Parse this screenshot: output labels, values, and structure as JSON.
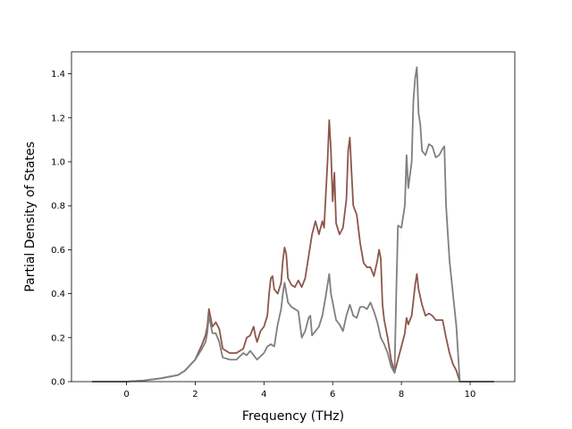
{
  "chart_data": {
    "type": "line",
    "title": "",
    "xlabel": "Frequency (THz)",
    "ylabel": "Partial Density of States",
    "xlim": [
      -1.6,
      11.3
    ],
    "ylim": [
      0.0,
      1.5
    ],
    "xticks": [
      0,
      2,
      4,
      6,
      8,
      10
    ],
    "yticks": [
      0.0,
      0.2,
      0.4,
      0.6,
      0.8,
      1.0,
      1.2,
      1.4
    ],
    "grid": false,
    "legend": "none",
    "series": [
      {
        "color": "#8c564b",
        "points": [
          [
            -1.0,
            0.0
          ],
          [
            0.0,
            0.0
          ],
          [
            0.5,
            0.005
          ],
          [
            1.0,
            0.015
          ],
          [
            1.5,
            0.03
          ],
          [
            1.7,
            0.05
          ],
          [
            2.0,
            0.1
          ],
          [
            2.2,
            0.17
          ],
          [
            2.3,
            0.21
          ],
          [
            2.35,
            0.25
          ],
          [
            2.4,
            0.33
          ],
          [
            2.45,
            0.29
          ],
          [
            2.5,
            0.25
          ],
          [
            2.6,
            0.27
          ],
          [
            2.7,
            0.24
          ],
          [
            2.8,
            0.15
          ],
          [
            3.0,
            0.13
          ],
          [
            3.2,
            0.13
          ],
          [
            3.4,
            0.15
          ],
          [
            3.5,
            0.2
          ],
          [
            3.6,
            0.21
          ],
          [
            3.7,
            0.25
          ],
          [
            3.75,
            0.21
          ],
          [
            3.8,
            0.18
          ],
          [
            3.9,
            0.23
          ],
          [
            4.0,
            0.25
          ],
          [
            4.1,
            0.3
          ],
          [
            4.15,
            0.4
          ],
          [
            4.2,
            0.47
          ],
          [
            4.25,
            0.48
          ],
          [
            4.3,
            0.42
          ],
          [
            4.4,
            0.4
          ],
          [
            4.5,
            0.45
          ],
          [
            4.55,
            0.55
          ],
          [
            4.6,
            0.61
          ],
          [
            4.65,
            0.58
          ],
          [
            4.7,
            0.47
          ],
          [
            4.8,
            0.44
          ],
          [
            4.9,
            0.43
          ],
          [
            5.0,
            0.46
          ],
          [
            5.1,
            0.43
          ],
          [
            5.2,
            0.47
          ],
          [
            5.3,
            0.57
          ],
          [
            5.4,
            0.67
          ],
          [
            5.5,
            0.73
          ],
          [
            5.6,
            0.67
          ],
          [
            5.7,
            0.73
          ],
          [
            5.75,
            0.7
          ],
          [
            5.8,
            0.85
          ],
          [
            5.85,
            1.0
          ],
          [
            5.9,
            1.19
          ],
          [
            5.95,
            1.05
          ],
          [
            6.0,
            0.82
          ],
          [
            6.05,
            0.95
          ],
          [
            6.1,
            0.72
          ],
          [
            6.2,
            0.67
          ],
          [
            6.3,
            0.7
          ],
          [
            6.4,
            0.83
          ],
          [
            6.45,
            1.05
          ],
          [
            6.5,
            1.11
          ],
          [
            6.55,
            0.95
          ],
          [
            6.6,
            0.8
          ],
          [
            6.7,
            0.76
          ],
          [
            6.8,
            0.63
          ],
          [
            6.9,
            0.54
          ],
          [
            7.0,
            0.52
          ],
          [
            7.1,
            0.52
          ],
          [
            7.2,
            0.48
          ],
          [
            7.3,
            0.55
          ],
          [
            7.35,
            0.6
          ],
          [
            7.4,
            0.56
          ],
          [
            7.45,
            0.35
          ],
          [
            7.5,
            0.28
          ],
          [
            7.6,
            0.2
          ],
          [
            7.7,
            0.1
          ],
          [
            7.8,
            0.04
          ],
          [
            7.9,
            0.1
          ],
          [
            8.0,
            0.16
          ],
          [
            8.1,
            0.22
          ],
          [
            8.15,
            0.29
          ],
          [
            8.2,
            0.26
          ],
          [
            8.3,
            0.3
          ],
          [
            8.4,
            0.44
          ],
          [
            8.45,
            0.49
          ],
          [
            8.5,
            0.42
          ],
          [
            8.6,
            0.35
          ],
          [
            8.7,
            0.3
          ],
          [
            8.8,
            0.31
          ],
          [
            8.9,
            0.3
          ],
          [
            9.0,
            0.28
          ],
          [
            9.1,
            0.28
          ],
          [
            9.2,
            0.28
          ],
          [
            9.3,
            0.2
          ],
          [
            9.4,
            0.13
          ],
          [
            9.5,
            0.08
          ],
          [
            9.6,
            0.05
          ],
          [
            9.7,
            0.0
          ],
          [
            10.7,
            0.0
          ]
        ]
      },
      {
        "color": "#7f7f7f",
        "points": [
          [
            -1.0,
            0.0
          ],
          [
            0.0,
            0.0
          ],
          [
            0.5,
            0.005
          ],
          [
            1.0,
            0.015
          ],
          [
            1.5,
            0.03
          ],
          [
            1.7,
            0.05
          ],
          [
            2.0,
            0.1
          ],
          [
            2.2,
            0.15
          ],
          [
            2.3,
            0.18
          ],
          [
            2.35,
            0.22
          ],
          [
            2.4,
            0.3
          ],
          [
            2.45,
            0.26
          ],
          [
            2.5,
            0.22
          ],
          [
            2.6,
            0.22
          ],
          [
            2.7,
            0.18
          ],
          [
            2.8,
            0.11
          ],
          [
            3.0,
            0.1
          ],
          [
            3.2,
            0.1
          ],
          [
            3.4,
            0.13
          ],
          [
            3.5,
            0.12
          ],
          [
            3.6,
            0.14
          ],
          [
            3.7,
            0.12
          ],
          [
            3.8,
            0.1
          ],
          [
            4.0,
            0.13
          ],
          [
            4.1,
            0.16
          ],
          [
            4.2,
            0.17
          ],
          [
            4.3,
            0.16
          ],
          [
            4.4,
            0.26
          ],
          [
            4.5,
            0.33
          ],
          [
            4.55,
            0.4
          ],
          [
            4.6,
            0.45
          ],
          [
            4.7,
            0.36
          ],
          [
            4.8,
            0.34
          ],
          [
            4.9,
            0.33
          ],
          [
            5.0,
            0.32
          ],
          [
            5.1,
            0.2
          ],
          [
            5.2,
            0.23
          ],
          [
            5.3,
            0.29
          ],
          [
            5.35,
            0.3
          ],
          [
            5.4,
            0.21
          ],
          [
            5.5,
            0.23
          ],
          [
            5.6,
            0.25
          ],
          [
            5.7,
            0.3
          ],
          [
            5.8,
            0.39
          ],
          [
            5.9,
            0.49
          ],
          [
            5.95,
            0.4
          ],
          [
            6.0,
            0.36
          ],
          [
            6.1,
            0.28
          ],
          [
            6.2,
            0.26
          ],
          [
            6.3,
            0.23
          ],
          [
            6.4,
            0.3
          ],
          [
            6.5,
            0.35
          ],
          [
            6.6,
            0.3
          ],
          [
            6.7,
            0.29
          ],
          [
            6.8,
            0.34
          ],
          [
            6.9,
            0.34
          ],
          [
            7.0,
            0.33
          ],
          [
            7.1,
            0.36
          ],
          [
            7.2,
            0.32
          ],
          [
            7.3,
            0.27
          ],
          [
            7.4,
            0.2
          ],
          [
            7.5,
            0.17
          ],
          [
            7.6,
            0.13
          ],
          [
            7.7,
            0.07
          ],
          [
            7.8,
            0.04
          ],
          [
            7.85,
            0.4
          ],
          [
            7.9,
            0.71
          ],
          [
            8.0,
            0.7
          ],
          [
            8.1,
            0.8
          ],
          [
            8.15,
            1.03
          ],
          [
            8.2,
            0.88
          ],
          [
            8.3,
            1.0
          ],
          [
            8.35,
            1.28
          ],
          [
            8.4,
            1.38
          ],
          [
            8.45,
            1.43
          ],
          [
            8.5,
            1.22
          ],
          [
            8.55,
            1.17
          ],
          [
            8.6,
            1.05
          ],
          [
            8.7,
            1.03
          ],
          [
            8.8,
            1.08
          ],
          [
            8.9,
            1.07
          ],
          [
            9.0,
            1.02
          ],
          [
            9.1,
            1.03
          ],
          [
            9.2,
            1.06
          ],
          [
            9.25,
            1.07
          ],
          [
            9.3,
            0.8
          ],
          [
            9.4,
            0.55
          ],
          [
            9.5,
            0.4
          ],
          [
            9.6,
            0.25
          ],
          [
            9.7,
            0.0
          ],
          [
            10.7,
            0.0
          ]
        ]
      }
    ]
  }
}
